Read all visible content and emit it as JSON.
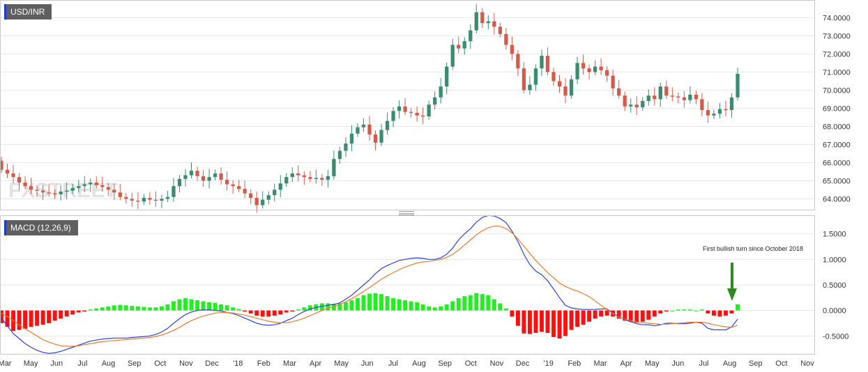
{
  "price_pane": {
    "symbol": "USD/INR"
  },
  "macd_pane": {
    "label": "MACD (12,26,9)"
  },
  "annotation": "First bullish turn since October 2018",
  "watermark": "FXSTREET",
  "colors": {
    "up": "#3a8c6e",
    "down": "#d45a4a",
    "macd_line": "#2b3fd8",
    "signal_line": "#ef7a2c",
    "hist_pos": "#22ee22",
    "hist_neg": "#ff1010",
    "arrow": "#2c8a1e",
    "grid": "#e6e6e6"
  },
  "chart_data": [
    {
      "type": "candlestick",
      "title": "USD/INR",
      "timeframe": "weekly",
      "ylim": [
        63.4,
        74.9
      ],
      "y_ticks": [
        "74.0000",
        "73.0000",
        "72.0000",
        "71.0000",
        "70.0000",
        "69.0000",
        "68.0000",
        "67.0000",
        "66.0000",
        "65.0000",
        "64.0000"
      ],
      "x_ticks": [
        "Mar",
        "May",
        "Jun",
        "Jul",
        "Aug",
        "Sep",
        "Oct",
        "Nov",
        "Dec",
        "'18",
        "Feb",
        "Mar",
        "Apr",
        "May",
        "Jun",
        "Jul",
        "Aug",
        "Sep",
        "Oct",
        "Nov",
        "Dec",
        "'19",
        "Feb",
        "Mar",
        "Apr",
        "May",
        "Jun",
        "Jul",
        "Aug",
        "Sep",
        "Oct",
        "Nov"
      ],
      "closes": [
        65.6,
        65.4,
        65.2,
        64.9,
        64.7,
        64.5,
        64.45,
        64.35,
        64.3,
        64.25,
        64.4,
        64.45,
        64.6,
        64.7,
        64.8,
        64.9,
        64.75,
        64.65,
        64.5,
        64.35,
        64.1,
        64.0,
        63.9,
        63.85,
        64.05,
        63.95,
        63.9,
        64.0,
        64.1,
        64.7,
        65.1,
        65.3,
        65.55,
        65.25,
        65.0,
        65.2,
        65.4,
        65.05,
        64.8,
        64.7,
        64.55,
        64.3,
        64.05,
        63.65,
        63.95,
        64.2,
        64.5,
        64.85,
        65.2,
        65.4,
        65.3,
        65.2,
        65.1,
        65.15,
        65.05,
        65.25,
        66.2,
        66.65,
        67.05,
        67.6,
        67.95,
        68.1,
        67.55,
        67.1,
        67.8,
        68.3,
        68.85,
        69.1,
        68.8,
        68.75,
        68.6,
        68.55,
        69.2,
        69.6,
        70.2,
        71.3,
        72.5,
        72.3,
        72.7,
        73.3,
        74.3,
        73.7,
        73.8,
        73.5,
        73.1,
        72.5,
        72.0,
        71.2,
        70.0,
        70.3,
        71.2,
        71.9,
        71.0,
        70.5,
        70.2,
        69.7,
        70.6,
        71.5,
        71.2,
        71.0,
        71.3,
        71.1,
        70.8,
        70.1,
        69.7,
        69.1,
        69.2,
        69.05,
        69.4,
        69.7,
        69.5,
        70.2,
        69.7,
        69.65,
        69.6,
        69.45,
        69.75,
        69.5,
        68.9,
        68.6,
        68.7,
        68.95,
        68.9,
        69.6,
        70.9
      ]
    },
    {
      "type": "line_histogram",
      "title": "MACD (12,26,9)",
      "ylim": [
        -0.85,
        1.85
      ],
      "y_ticks": [
        "1.5000",
        "1.0000",
        "0.5000",
        "0.0000",
        "-0.5000"
      ],
      "series": [
        {
          "name": "MACD",
          "values": [
            -0.15,
            -0.3,
            -0.45,
            -0.55,
            -0.65,
            -0.72,
            -0.78,
            -0.82,
            -0.84,
            -0.83,
            -0.8,
            -0.76,
            -0.72,
            -0.68,
            -0.64,
            -0.6,
            -0.58,
            -0.56,
            -0.55,
            -0.54,
            -0.54,
            -0.54,
            -0.53,
            -0.52,
            -0.51,
            -0.5,
            -0.47,
            -0.42,
            -0.35,
            -0.25,
            -0.16,
            -0.08,
            -0.03,
            0.0,
            0.01,
            0.01,
            0.0,
            -0.01,
            -0.04,
            -0.06,
            -0.1,
            -0.15,
            -0.2,
            -0.25,
            -0.28,
            -0.29,
            -0.28,
            -0.25,
            -0.2,
            -0.15,
            -0.08,
            -0.02,
            0.03,
            0.06,
            0.08,
            0.1,
            0.12,
            0.15,
            0.22,
            0.3,
            0.4,
            0.5,
            0.6,
            0.72,
            0.82,
            0.88,
            0.93,
            0.98,
            1.0,
            1.02,
            1.03,
            1.02,
            1.0,
            1.0,
            1.03,
            1.1,
            1.22,
            1.38,
            1.5,
            1.6,
            1.73,
            1.82,
            1.86,
            1.85,
            1.8,
            1.72,
            1.55,
            1.35,
            1.1,
            0.9,
            0.77,
            0.7,
            0.58,
            0.42,
            0.25,
            0.1,
            0.05,
            0.03,
            0.02,
            0.02,
            0.02,
            0.03,
            0.03,
            -0.05,
            -0.12,
            -0.18,
            -0.22,
            -0.26,
            -0.28,
            -0.28,
            -0.3,
            -0.28,
            -0.25,
            -0.25,
            -0.26,
            -0.26,
            -0.25,
            -0.23,
            -0.25,
            -0.35,
            -0.38,
            -0.38,
            -0.38,
            -0.32,
            -0.17
          ]
        },
        {
          "name": "Signal",
          "values": [
            -0.05,
            -0.12,
            -0.2,
            -0.28,
            -0.36,
            -0.43,
            -0.5,
            -0.57,
            -0.62,
            -0.66,
            -0.69,
            -0.7,
            -0.7,
            -0.69,
            -0.67,
            -0.65,
            -0.63,
            -0.61,
            -0.6,
            -0.59,
            -0.58,
            -0.57,
            -0.56,
            -0.55,
            -0.54,
            -0.53,
            -0.51,
            -0.48,
            -0.44,
            -0.39,
            -0.33,
            -0.26,
            -0.2,
            -0.15,
            -0.11,
            -0.08,
            -0.05,
            -0.04,
            -0.04,
            -0.05,
            -0.07,
            -0.09,
            -0.12,
            -0.15,
            -0.18,
            -0.21,
            -0.23,
            -0.24,
            -0.24,
            -0.22,
            -0.19,
            -0.15,
            -0.1,
            -0.05,
            0.0,
            0.04,
            0.08,
            0.12,
            0.17,
            0.23,
            0.3,
            0.37,
            0.45,
            0.53,
            0.61,
            0.68,
            0.74,
            0.8,
            0.85,
            0.89,
            0.93,
            0.95,
            0.96,
            0.98,
            1.0,
            1.04,
            1.1,
            1.18,
            1.28,
            1.38,
            1.48,
            1.56,
            1.62,
            1.65,
            1.65,
            1.6,
            1.52,
            1.4,
            1.26,
            1.12,
            0.98,
            0.86,
            0.74,
            0.64,
            0.54,
            0.47,
            0.42,
            0.38,
            0.33,
            0.27,
            0.19,
            0.1,
            0.02,
            -0.06,
            -0.13,
            -0.17,
            -0.2,
            -0.23,
            -0.24,
            -0.25,
            -0.26,
            -0.27,
            -0.27,
            -0.26,
            -0.25,
            -0.24,
            -0.23,
            -0.23,
            -0.23,
            -0.25,
            -0.28,
            -0.3,
            -0.32,
            -0.33,
            -0.29
          ]
        }
      ],
      "histogram": [
        -0.25,
        -0.32,
        -0.4,
        -0.38,
        -0.36,
        -0.32,
        -0.3,
        -0.28,
        -0.25,
        -0.2,
        -0.16,
        -0.12,
        -0.08,
        -0.04,
        -0.02,
        0.02,
        0.04,
        0.06,
        0.08,
        0.1,
        0.11,
        0.1,
        0.09,
        0.08,
        0.07,
        0.06,
        0.06,
        0.08,
        0.12,
        0.18,
        0.22,
        0.24,
        0.22,
        0.2,
        0.18,
        0.16,
        0.15,
        0.12,
        0.1,
        0.06,
        0.03,
        -0.02,
        -0.06,
        -0.1,
        -0.12,
        -0.12,
        -0.1,
        -0.08,
        -0.04,
        -0.02,
        0.02,
        0.06,
        0.1,
        0.12,
        0.14,
        0.14,
        0.13,
        0.14,
        0.16,
        0.2,
        0.24,
        0.3,
        0.33,
        0.34,
        0.32,
        0.28,
        0.24,
        0.22,
        0.2,
        0.18,
        0.16,
        0.12,
        0.08,
        0.06,
        0.08,
        0.12,
        0.18,
        0.24,
        0.28,
        0.3,
        0.34,
        0.32,
        0.3,
        0.22,
        0.14,
        0.04,
        -0.12,
        -0.3,
        -0.45,
        -0.46,
        -0.44,
        -0.42,
        -0.44,
        -0.52,
        -0.55,
        -0.5,
        -0.38,
        -0.32,
        -0.28,
        -0.22,
        -0.16,
        -0.12,
        -0.1,
        -0.12,
        -0.16,
        -0.2,
        -0.22,
        -0.24,
        -0.22,
        -0.18,
        -0.12,
        -0.06,
        -0.02,
        0.0,
        0.02,
        0.02,
        0.02,
        0.0,
        0.02,
        -0.06,
        -0.1,
        -0.12,
        -0.1,
        -0.06,
        0.12
      ]
    }
  ]
}
